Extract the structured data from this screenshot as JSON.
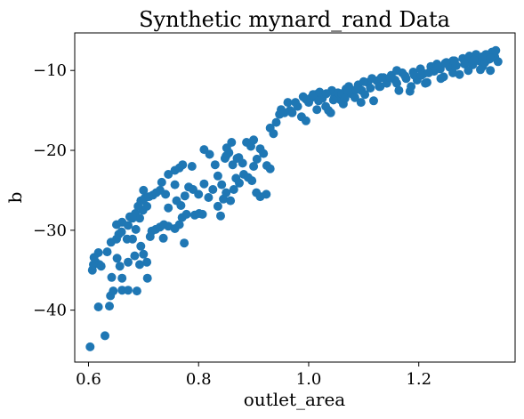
{
  "chart_data": {
    "type": "scatter",
    "title": "Synthetic mynard_rand Data",
    "xlabel": "outlet_area",
    "ylabel": "b",
    "xlim": [
      0.575,
      1.375
    ],
    "ylim": [
      -46.5,
      -5.3
    ],
    "xticks": [
      0.6,
      0.8,
      1.0,
      1.2
    ],
    "xtick_labels": [
      "0.6",
      "0.8",
      "1.0",
      "1.2"
    ],
    "yticks": [
      -40,
      -30,
      -20,
      -10
    ],
    "ytick_labels": [
      "−40",
      "−30",
      "−20",
      "−10"
    ],
    "grid": false,
    "marker_color": "#1f77b4",
    "series": [
      {
        "points": [
          [
            0.603,
            -44.6
          ],
          [
            0.63,
            -43.2
          ],
          [
            0.618,
            -39.6
          ],
          [
            0.638,
            -39.5
          ],
          [
            0.64,
            -38.2
          ],
          [
            0.645,
            -37.6
          ],
          [
            0.661,
            -37.5
          ],
          [
            0.672,
            -37.5
          ],
          [
            0.688,
            -37.6
          ],
          [
            0.707,
            -36.0
          ],
          [
            0.661,
            -36.0
          ],
          [
            0.642,
            -35.9
          ],
          [
            0.607,
            -35.0
          ],
          [
            0.609,
            -34.3
          ],
          [
            0.613,
            -34.0
          ],
          [
            0.62,
            -34.3
          ],
          [
            0.623,
            -34.5
          ],
          [
            0.61,
            -33.4
          ],
          [
            0.618,
            -32.8
          ],
          [
            0.634,
            -32.7
          ],
          [
            0.657,
            -34.5
          ],
          [
            0.652,
            -33.5
          ],
          [
            0.672,
            -34.0
          ],
          [
            0.684,
            -33.2
          ],
          [
            0.641,
            -31.5
          ],
          [
            0.651,
            -31.1
          ],
          [
            0.655,
            -30.5
          ],
          [
            0.66,
            -30.2
          ],
          [
            0.67,
            -31.1
          ],
          [
            0.68,
            -31.1
          ],
          [
            0.695,
            -32.0
          ],
          [
            0.7,
            -33.0
          ],
          [
            0.706,
            -34.0
          ],
          [
            0.693,
            -34.3
          ],
          [
            0.712,
            -30.8
          ],
          [
            0.715,
            -30.1
          ],
          [
            0.651,
            -29.3
          ],
          [
            0.661,
            -29.0
          ],
          [
            0.672,
            -29.4
          ],
          [
            0.686,
            -29.9
          ],
          [
            0.675,
            -28.3
          ],
          [
            0.685,
            -27.9
          ],
          [
            0.693,
            -28.5
          ],
          [
            0.699,
            -27.5
          ],
          [
            0.706,
            -27.0
          ],
          [
            0.722,
            -29.9
          ],
          [
            0.73,
            -29.6
          ],
          [
            0.737,
            -29.3
          ],
          [
            0.745,
            -29.5
          ],
          [
            0.757,
            -29.8
          ],
          [
            0.765,
            -29.3
          ],
          [
            0.774,
            -31.6
          ],
          [
            0.736,
            -31.0
          ],
          [
            0.68,
            -28.5
          ],
          [
            0.69,
            -27.0
          ],
          [
            0.695,
            -26.3
          ],
          [
            0.702,
            -26.0
          ],
          [
            0.71,
            -25.8
          ],
          [
            0.717,
            -25.6
          ],
          [
            0.723,
            -25.3
          ],
          [
            0.73,
            -25.0
          ],
          [
            0.733,
            -24.0
          ],
          [
            0.7,
            -25.0
          ],
          [
            0.74,
            -25.5
          ],
          [
            0.745,
            -27.2
          ],
          [
            0.76,
            -26.3
          ],
          [
            0.768,
            -26.9
          ],
          [
            0.775,
            -25.7
          ],
          [
            0.782,
            -24.6
          ],
          [
            0.757,
            -24.3
          ],
          [
            0.745,
            -23.0
          ],
          [
            0.757,
            -22.5
          ],
          [
            0.765,
            -22.2
          ],
          [
            0.771,
            -21.8
          ],
          [
            0.788,
            -22.0
          ],
          [
            0.77,
            -28.4
          ],
          [
            0.778,
            -28.0
          ],
          [
            0.793,
            -28.1
          ],
          [
            0.801,
            -27.9
          ],
          [
            0.807,
            -28.0
          ],
          [
            0.79,
            -24.9
          ],
          [
            0.8,
            -25.5
          ],
          [
            0.81,
            -24.2
          ],
          [
            0.818,
            -25.9
          ],
          [
            0.826,
            -24.9
          ],
          [
            0.82,
            -20.5
          ],
          [
            0.83,
            -21.8
          ],
          [
            0.835,
            -23.2
          ],
          [
            0.842,
            -24.3
          ],
          [
            0.848,
            -21.0
          ],
          [
            0.851,
            -19.7
          ],
          [
            0.855,
            -20.3
          ],
          [
            0.862,
            -21.8
          ],
          [
            0.868,
            -23.5
          ],
          [
            0.873,
            -20.9
          ],
          [
            0.88,
            -21.6
          ],
          [
            0.887,
            -19.0
          ],
          [
            0.895,
            -19.5
          ],
          [
            0.9,
            -18.7
          ],
          [
            0.906,
            -21.1
          ],
          [
            0.912,
            -19.8
          ],
          [
            0.918,
            -20.4
          ],
          [
            0.924,
            -21.9
          ],
          [
            0.93,
            -17.2
          ],
          [
            0.936,
            -17.9
          ],
          [
            0.941,
            -16.5
          ],
          [
            0.947,
            -15.5
          ],
          [
            0.835,
            -27.0
          ],
          [
            0.84,
            -28.2
          ],
          [
            0.845,
            -26.1
          ],
          [
            0.85,
            -25.3
          ],
          [
            0.858,
            -26.3
          ],
          [
            0.864,
            -24.9
          ],
          [
            0.874,
            -24.1
          ],
          [
            0.882,
            -23.0
          ],
          [
            0.89,
            -23.4
          ],
          [
            0.897,
            -23.8
          ],
          [
            0.905,
            -25.3
          ],
          [
            0.912,
            -25.8
          ],
          [
            0.923,
            -25.5
          ],
          [
            0.93,
            -22.3
          ],
          [
            0.81,
            -19.9
          ],
          [
            0.85,
            -20.7
          ],
          [
            0.9,
            -22.0
          ],
          [
            0.87,
            -21.0
          ],
          [
            0.86,
            -19.0
          ],
          [
            0.95,
            -14.9
          ],
          [
            0.962,
            -14.0
          ],
          [
            0.97,
            -15.3
          ],
          [
            0.98,
            -14.5
          ],
          [
            0.987,
            -15.8
          ],
          [
            0.995,
            -16.3
          ],
          [
            1.0,
            -14.0
          ],
          [
            1.005,
            -13.4
          ],
          [
            1.012,
            -13.0
          ],
          [
            1.018,
            -13.8
          ],
          [
            1.025,
            -13.5
          ],
          [
            1.031,
            -14.5
          ],
          [
            1.036,
            -15.0
          ],
          [
            1.042,
            -12.5
          ],
          [
            1.047,
            -13.3
          ],
          [
            1.053,
            -12.8
          ],
          [
            1.058,
            -13.7
          ],
          [
            1.063,
            -14.2
          ],
          [
            1.068,
            -12.3
          ],
          [
            1.073,
            -12.0
          ],
          [
            1.078,
            -12.9
          ],
          [
            1.084,
            -13.4
          ],
          [
            1.09,
            -11.8
          ],
          [
            1.096,
            -12.5
          ],
          [
            1.102,
            -13.0
          ],
          [
            1.107,
            -11.5
          ],
          [
            1.112,
            -12.2
          ],
          [
            1.118,
            -13.8
          ],
          [
            1.124,
            -11.3
          ],
          [
            1.13,
            -12.0
          ],
          [
            1.136,
            -10.9
          ],
          [
            1.142,
            -11.6
          ],
          [
            1.15,
            -10.6
          ],
          [
            1.157,
            -11.2
          ],
          [
            1.164,
            -12.5
          ],
          [
            1.17,
            -10.3
          ],
          [
            1.177,
            -11.0
          ],
          [
            1.184,
            -12.6
          ],
          [
            1.19,
            -10.2
          ],
          [
            1.197,
            -11.2
          ],
          [
            1.203,
            -9.8
          ],
          [
            1.209,
            -10.4
          ],
          [
            1.215,
            -11.5
          ],
          [
            1.222,
            -9.5
          ],
          [
            1.228,
            -10.1
          ],
          [
            1.233,
            -9.2
          ],
          [
            1.239,
            -9.8
          ],
          [
            1.245,
            -10.8
          ],
          [
            1.25,
            -9.0
          ],
          [
            1.256,
            -9.6
          ],
          [
            1.262,
            -8.8
          ],
          [
            1.268,
            -9.4
          ],
          [
            1.274,
            -10.5
          ],
          [
            1.28,
            -8.5
          ],
          [
            1.286,
            -9.0
          ],
          [
            1.292,
            -8.2
          ],
          [
            1.298,
            -9.3
          ],
          [
            1.304,
            -8.0
          ],
          [
            1.31,
            -8.8
          ],
          [
            1.316,
            -9.5
          ],
          [
            1.322,
            -8.0
          ],
          [
            1.328,
            -8.6
          ],
          [
            1.333,
            -7.7
          ],
          [
            1.338,
            -8.3
          ],
          [
            1.34,
            -7.5
          ],
          [
            1.344,
            -8.9
          ],
          [
            1.33,
            -10.0
          ],
          [
            1.32,
            -9.0
          ],
          [
            0.995,
            -13.6
          ],
          [
            1.008,
            -13.0
          ],
          [
            1.02,
            -12.7
          ],
          [
            1.032,
            -12.9
          ],
          [
            1.045,
            -13.7
          ],
          [
            1.06,
            -12.9
          ],
          [
            1.072,
            -12.6
          ],
          [
            1.086,
            -12.4
          ],
          [
            1.1,
            -11.4
          ],
          [
            1.115,
            -11.0
          ],
          [
            1.132,
            -10.9
          ],
          [
            1.148,
            -10.9
          ],
          [
            1.16,
            -10.0
          ],
          [
            1.175,
            -10.7
          ],
          [
            1.192,
            -10.6
          ],
          [
            1.205,
            -10.6
          ],
          [
            1.218,
            -10.3
          ],
          [
            1.236,
            -9.5
          ],
          [
            1.248,
            -9.1
          ],
          [
            1.265,
            -8.8
          ],
          [
            1.283,
            -9.2
          ],
          [
            1.3,
            -8.7
          ],
          [
            1.315,
            -8.3
          ],
          [
            1.33,
            -8.5
          ],
          [
            0.956,
            -15.3
          ],
          [
            0.966,
            -15.0
          ],
          [
            0.976,
            -14.0
          ],
          [
            0.99,
            -13.3
          ],
          [
            1.015,
            -14.9
          ],
          [
            1.04,
            -15.3
          ],
          [
            1.066,
            -13.5
          ],
          [
            1.095,
            -14.0
          ],
          [
            1.128,
            -12.0
          ],
          [
            1.16,
            -11.6
          ],
          [
            1.186,
            -12.0
          ],
          [
            1.212,
            -11.6
          ],
          [
            1.24,
            -11.0
          ],
          [
            1.262,
            -10.3
          ],
          [
            1.29,
            -10.0
          ],
          [
            1.312,
            -9.9
          ]
        ]
      }
    ]
  }
}
